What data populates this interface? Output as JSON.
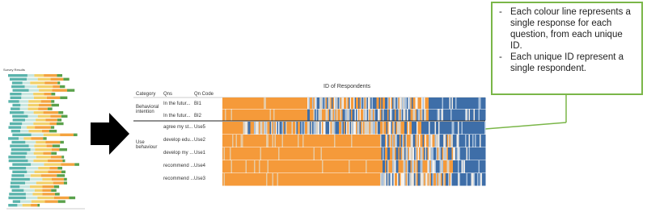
{
  "thumbnail": {
    "title": "Survey Results"
  },
  "table": {
    "title": "ID of Respondents",
    "headers": [
      "Category",
      "Qns",
      "Qn Code"
    ],
    "groups": [
      {
        "category": "Behavioral intention",
        "rows": [
          [
            "In the futur...",
            "BI1"
          ],
          [
            "In the futur...",
            "BI2"
          ]
        ]
      },
      {
        "category": "Use behaviour",
        "rows": [
          [
            "agree my st...",
            "Use5"
          ],
          [
            "develop edu...",
            "Use2"
          ],
          [
            "develop my ...",
            "Use1"
          ],
          [
            "recommend ...",
            "Use4"
          ],
          [
            "recommend ...",
            "Use3"
          ]
        ]
      }
    ]
  },
  "callout": {
    "items": [
      "Each colour line represents a single response for each question, from each  unique ID.",
      "Each unique ID represent a single respondent."
    ]
  }
}
